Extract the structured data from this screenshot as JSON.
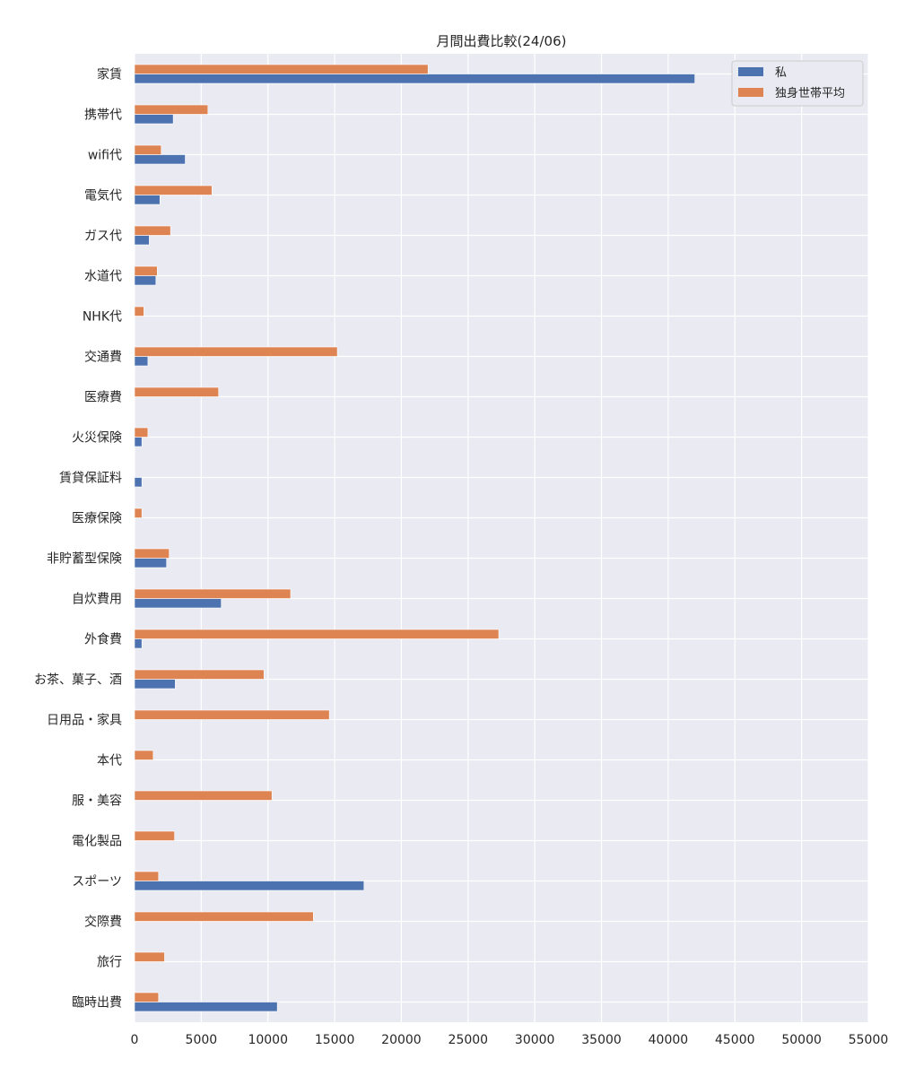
{
  "chart_data": {
    "type": "bar",
    "orientation": "horizontal",
    "title": "月間出費比較(24/06)",
    "xlabel": "",
    "ylabel": "",
    "xlim": [
      0,
      55000
    ],
    "xticks": [
      0,
      5000,
      10000,
      15000,
      20000,
      25000,
      30000,
      35000,
      40000,
      45000,
      50000,
      55000
    ],
    "grid": true,
    "legend_position": "top-right",
    "categories": [
      "家賃",
      "携帯代",
      "wifi代",
      "電気代",
      "ガス代",
      "水道代",
      "NHK代",
      "交通費",
      "医療費",
      "火災保険",
      "賃貸保証料",
      "医療保険",
      "非貯蓄型保険",
      "自炊費用",
      "外食費",
      "お茶、菓子、酒",
      "日用品・家具",
      "本代",
      "服・美容",
      "電化製品",
      "スポーツ",
      "交際費",
      "旅行",
      "臨時出費"
    ],
    "series": [
      {
        "name": "私",
        "color": "#4c72b0",
        "values": [
          42000,
          2900,
          3800,
          1900,
          1100,
          1600,
          0,
          1000,
          0,
          550,
          550,
          0,
          2400,
          6500,
          550,
          3050,
          0,
          0,
          0,
          0,
          17200,
          0,
          0,
          10700
        ]
      },
      {
        "name": "独身世帯平均",
        "color": "#dd8452",
        "values": [
          22000,
          5500,
          2000,
          5800,
          2700,
          1700,
          700,
          15200,
          6300,
          1000,
          0,
          550,
          2600,
          11700,
          27300,
          9700,
          14600,
          1400,
          10300,
          3000,
          1800,
          13400,
          2250,
          1800
        ]
      }
    ]
  }
}
